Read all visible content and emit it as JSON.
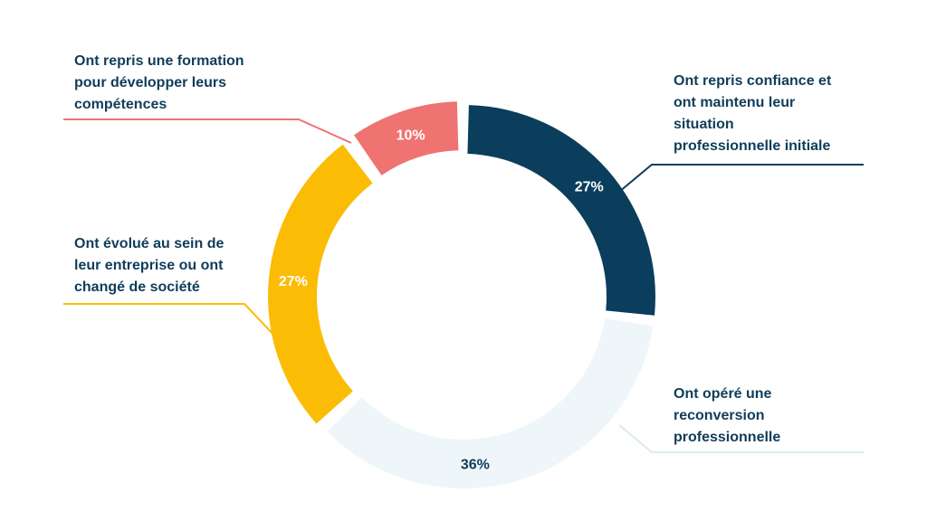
{
  "chart_data": {
    "type": "pie",
    "donut": true,
    "title": "",
    "slices": [
      {
        "label": "Ont repris confiance et ont maintenu leur situation professionnelle initiale",
        "value": 27,
        "display": "27%",
        "color": "#0b3d5c",
        "text_color": "#ffffff"
      },
      {
        "label": "Ont opéré une reconversion professionnelle",
        "value": 36,
        "display": "36%",
        "color": "#eef6f9",
        "text_color": "#0f3d5a"
      },
      {
        "label": "Ont évolué au sein de leur entreprise ou ont changé de société",
        "value": 27,
        "display": "27%",
        "color": "#fbbc05",
        "text_color": "#ffffff"
      },
      {
        "label": "Ont repris une formation pour développer leurs compétences",
        "value": 10,
        "display": "10%",
        "color": "#ef7371",
        "text_color": "#ffffff"
      }
    ]
  },
  "labels": {
    "top_left": "Ont repris une formation\npour développer leurs\ncompétences",
    "middle_left": "Ont évolué au sein de\nleur entreprise ou ont\nchangé de société",
    "top_right": "Ont repris confiance et\nont maintenu leur\nsituation\nprofessionnelle initiale",
    "bottom_right": "Ont opéré une\nreconversion\nprofessionnelle"
  },
  "colors": {
    "navy": "#0b3d5c",
    "light_blue": "#eef6f9",
    "yellow": "#fbbc05",
    "coral": "#ef7371",
    "text": "#0f3d5a"
  }
}
